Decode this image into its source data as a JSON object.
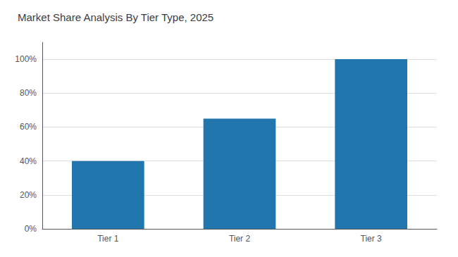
{
  "chart_data": {
    "type": "bar",
    "title": "Market Share Analysis By Tier Type, 2025",
    "categories": [
      "Tier 1",
      "Tier 2",
      "Tier 3"
    ],
    "values": [
      40,
      65,
      100
    ],
    "color": "#2176AE",
    "ylim": [
      0,
      110
    ],
    "yticks": [
      {
        "value": 0,
        "label": "0%"
      },
      {
        "value": 20,
        "label": "20%"
      },
      {
        "value": 40,
        "label": "40%"
      },
      {
        "value": 60,
        "label": "60%"
      },
      {
        "value": 80,
        "label": "80%"
      },
      {
        "value": 100,
        "label": "100%"
      }
    ],
    "grid": true
  }
}
